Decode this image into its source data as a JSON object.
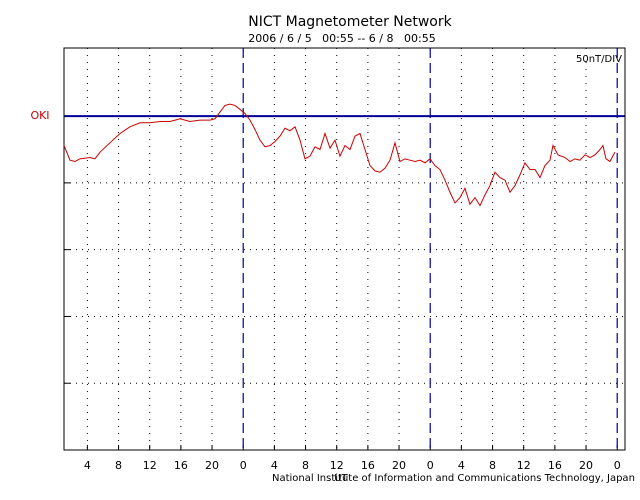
{
  "chart_data": {
    "type": "line",
    "title": "NICT Magnetometer Network",
    "subtitle": "2006 / 6 / 5   00:55 -- 6 / 8   00:55",
    "scale_note": "50nT/DIV",
    "x_label": "UT",
    "footer": "National Institute of Information and Communications Technology, Japan",
    "xlim": [
      1,
      73
    ],
    "xticks": [
      4,
      8,
      12,
      16,
      20,
      {
        "value": 24,
        "label": "0"
      },
      {
        "value": 28,
        "label": "4"
      },
      {
        "value": 32,
        "label": "8"
      },
      {
        "value": 36,
        "label": "12"
      },
      {
        "value": 40,
        "label": "16"
      },
      {
        "value": 44,
        "label": "20"
      },
      {
        "value": 48,
        "label": "0"
      },
      {
        "value": 52,
        "label": "4"
      },
      {
        "value": 56,
        "label": "8"
      },
      {
        "value": 60,
        "label": "12"
      },
      {
        "value": 64,
        "label": "16"
      },
      {
        "value": 68,
        "label": "20"
      },
      {
        "value": 72,
        "label": "0"
      }
    ],
    "day_lines": [
      24,
      48,
      72
    ],
    "ylim": [
      -250,
      51
    ],
    "yticks": [
      -200,
      -150,
      -100,
      -50,
      0
    ],
    "reference_line": {
      "value": 0,
      "color": "#000099"
    },
    "grid": true,
    "x": [
      1.0,
      1.77,
      2.41,
      3.05,
      4.34,
      4.98,
      5.62,
      6.9,
      8.19,
      9.47,
      10.75,
      12.04,
      13.32,
      14.6,
      15.89,
      17.17,
      18.45,
      19.74,
      20.38,
      21.02,
      21.66,
      22.3,
      22.95,
      23.59,
      24.23,
      24.87,
      25.51,
      26.15,
      26.8,
      27.44,
      28.08,
      28.72,
      29.36,
      30.0,
      30.65,
      31.29,
      31.93,
      32.57,
      33.21,
      33.85,
      34.5,
      35.14,
      35.78,
      36.42,
      37.06,
      37.7,
      38.35,
      38.99,
      39.63,
      40.27,
      40.91,
      41.55,
      42.2,
      42.84,
      43.48,
      44.12,
      44.76,
      45.4,
      46.05,
      46.69,
      47.33,
      47.97,
      48.61,
      49.25,
      49.9,
      50.54,
      51.18,
      51.82,
      52.46,
      53.1,
      53.75,
      54.39,
      55.03,
      55.67,
      56.31,
      56.95,
      57.6,
      58.24,
      58.88,
      59.52,
      60.16,
      60.8,
      61.45,
      62.09,
      62.73,
      63.37,
      63.76,
      64.4,
      65.3,
      65.94,
      66.58,
      67.22,
      67.86,
      68.51,
      69.15,
      69.79,
      70.17,
      70.56,
      71.07,
      71.71
    ],
    "series": [
      {
        "name": "OKI",
        "color": "#cc0000",
        "values": [
          -22,
          -33,
          -34,
          -32,
          -31,
          -32,
          -27,
          -20,
          -13,
          -8,
          -5,
          -5,
          -4,
          -4,
          -2,
          -4,
          -3,
          -3,
          -2,
          3,
          8,
          9,
          8,
          5,
          2,
          -3,
          -10,
          -18,
          -23,
          -22,
          -19,
          -15,
          -9,
          -11,
          -8,
          -18,
          -32,
          -30,
          -23,
          -25,
          -13,
          -24,
          -18,
          -30,
          -22,
          -25,
          -15,
          -13,
          -25,
          -37,
          -41,
          -42,
          -39,
          -33,
          -20,
          -34,
          -32,
          -33,
          -34,
          -33,
          -35,
          -32,
          -37,
          -40,
          -48,
          -57,
          -65,
          -61,
          -54,
          -66,
          -61,
          -67,
          -59,
          -52,
          -42,
          -46,
          -48,
          -57,
          -52,
          -44,
          -35,
          -40,
          -40,
          -46,
          -37,
          -33,
          -22,
          -29,
          -31,
          -34,
          -32,
          -33,
          -29,
          -31,
          -29,
          -25,
          -22,
          -32,
          -34,
          -27
        ]
      }
    ]
  }
}
